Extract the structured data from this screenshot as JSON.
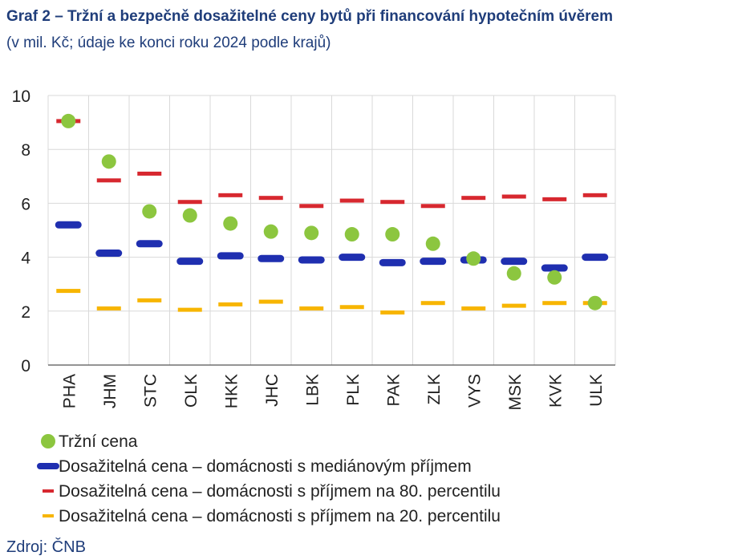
{
  "title": "Graf 2 – Tržní a bezpečně dosažitelné ceny bytů při financování hypotečním úvěrem",
  "subtitle": "(v mil. Kč; údaje ke konci roku 2024 podle krajů)",
  "source": "Zdroj: ČNB",
  "chart_data": {
    "type": "scatter",
    "categories": [
      "PHA",
      "JHM",
      "STC",
      "OLK",
      "HKK",
      "JHC",
      "LBK",
      "PLK",
      "PAK",
      "ZLK",
      "VYS",
      "MSK",
      "KVK",
      "ULK"
    ],
    "yticks": [
      "0",
      "2",
      "4",
      "6",
      "8",
      "10"
    ],
    "ylim": [
      0,
      10
    ],
    "grid": true,
    "legend_position": "bottom",
    "series": [
      {
        "name": "Tržní cena",
        "marker": "circle",
        "color": "#8cc63f",
        "values": [
          9.05,
          7.55,
          5.7,
          5.55,
          5.25,
          4.95,
          4.9,
          4.85,
          4.85,
          4.5,
          3.95,
          3.4,
          3.25,
          2.3
        ]
      },
      {
        "name": "Dosažitelná cena – domácnosti s mediánovým příjmem",
        "marker": "thick-dash",
        "color": "#1f2fb0",
        "values": [
          5.2,
          4.15,
          4.5,
          3.85,
          4.05,
          3.95,
          3.9,
          4.0,
          3.8,
          3.85,
          3.9,
          3.85,
          3.6,
          4.0
        ]
      },
      {
        "name": "Dosažitelná cena – domácnosti s příjmem na 80. percentilu",
        "marker": "dash",
        "color": "#d7282f",
        "values": [
          9.05,
          6.85,
          7.1,
          6.05,
          6.3,
          6.2,
          5.9,
          6.1,
          6.05,
          5.9,
          6.2,
          6.25,
          6.15,
          6.3
        ]
      },
      {
        "name": "Dosažitelná cena – domácnosti s příjmem na 20. percentilu",
        "marker": "dash",
        "color": "#f7b500",
        "values": [
          2.75,
          2.1,
          2.4,
          2.05,
          2.25,
          2.35,
          2.1,
          2.15,
          1.95,
          2.3,
          2.1,
          2.2,
          2.3,
          2.3
        ]
      }
    ]
  }
}
